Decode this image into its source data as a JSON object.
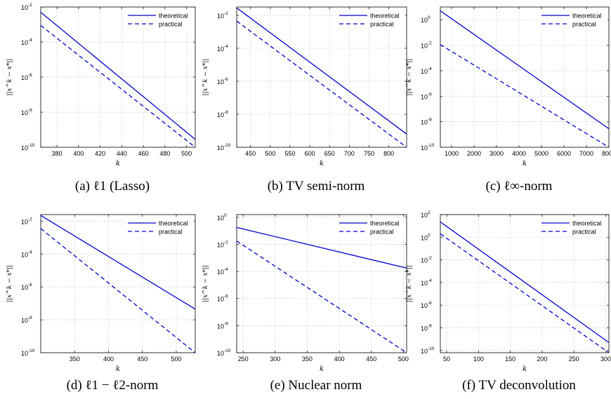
{
  "chart_data": [
    {
      "type": "line",
      "caption": "(a) ℓ1 (Lasso)",
      "xlabel": "k",
      "ylabel": "||x^k − x*||",
      "yscale": "log",
      "xlim": [
        365,
        508
      ],
      "ylim_exp": [
        -10,
        -2
      ],
      "xticks": [
        380,
        400,
        420,
        440,
        460,
        480,
        500
      ],
      "yticks_exp": [
        -10,
        -8,
        -6,
        -4,
        -2
      ],
      "grid": true,
      "legend": "top-right",
      "series": [
        {
          "name": "theoretical",
          "style": "solid",
          "x": [
            365,
            508
          ],
          "y": [
            "1e-2.3",
            "1e-9.55"
          ]
        },
        {
          "name": "practical",
          "style": "dashed",
          "x": [
            365,
            508
          ],
          "y": [
            "1e-3.05",
            "1e-10"
          ]
        }
      ]
    },
    {
      "type": "line",
      "caption": "(b) TV semi-norm",
      "xlabel": "k",
      "ylabel": "||x^k − x*||",
      "yscale": "log",
      "xlim": [
        415,
        845
      ],
      "ylim_exp": [
        -10,
        -1.5
      ],
      "xticks": [
        450,
        500,
        550,
        600,
        650,
        700,
        750,
        800
      ],
      "yticks_exp": [
        -10,
        -8,
        -6,
        -4,
        -2
      ],
      "grid": true,
      "legend": "top-right",
      "series": [
        {
          "name": "theoretical",
          "style": "solid",
          "x": [
            415,
            845
          ],
          "y": [
            "1e-1.55",
            "1e-9.2"
          ]
        },
        {
          "name": "practical",
          "style": "dashed",
          "x": [
            415,
            845
          ],
          "y": [
            "1e-2.35",
            "1e-10"
          ]
        }
      ]
    },
    {
      "type": "line",
      "caption": "(c) ℓ∞-norm",
      "xlabel": "k",
      "ylabel": "||x^k − x*||",
      "yscale": "log",
      "xlim": [
        500,
        8000
      ],
      "ylim_exp": [
        -10,
        1
      ],
      "xticks": [
        1000,
        2000,
        3000,
        4000,
        5000,
        6000,
        7000,
        8000
      ],
      "yticks_exp": [
        -10,
        -8,
        -6,
        -4,
        -2,
        0
      ],
      "grid": true,
      "legend": "top-right",
      "series": [
        {
          "name": "theoretical",
          "style": "solid",
          "x": [
            500,
            8000
          ],
          "y": [
            "1e0.7",
            "1e-8.55"
          ]
        },
        {
          "name": "practical",
          "style": "dashed",
          "x": [
            500,
            8000
          ],
          "y": [
            "1e-1.95",
            "1e-10"
          ]
        }
      ]
    },
    {
      "type": "line",
      "caption": "(d) ℓ1 − ℓ2-norm",
      "xlabel": "k",
      "ylabel": "||x^k − x*||",
      "yscale": "log",
      "xlim": [
        300,
        528
      ],
      "ylim_exp": [
        -10,
        -1.6
      ],
      "xticks": [
        350,
        400,
        450,
        500
      ],
      "yticks_exp": [
        -10,
        -8,
        -6,
        -4,
        -2
      ],
      "grid": true,
      "legend": "top-right",
      "series": [
        {
          "name": "theoretical",
          "style": "solid",
          "x": [
            300,
            528
          ],
          "y": [
            "1e-1.65",
            "1e-7.35"
          ]
        },
        {
          "name": "practical",
          "style": "dashed",
          "x": [
            300,
            528
          ],
          "y": [
            "1e-2.45",
            "1e-10"
          ]
        }
      ]
    },
    {
      "type": "line",
      "caption": "(e) Nuclear norm",
      "xlabel": "k",
      "ylabel": "||x^k − x*||",
      "yscale": "log",
      "xlim": [
        240,
        505
      ],
      "ylim_exp": [
        -10,
        0.2
      ],
      "xticks": [
        250,
        300,
        350,
        400,
        450,
        500
      ],
      "yticks_exp": [
        -10,
        -8,
        -6,
        -4,
        -2,
        0
      ],
      "grid": true,
      "legend": "top-right",
      "series": [
        {
          "name": "theoretical",
          "style": "solid",
          "x": [
            240,
            505
          ],
          "y": [
            "1e-0.75",
            "1e-3.75"
          ]
        },
        {
          "name": "practical",
          "style": "dashed",
          "x": [
            240,
            505
          ],
          "y": [
            "1e-1.75",
            "1e-10"
          ]
        }
      ]
    },
    {
      "type": "line",
      "caption": "(f) TV deconvolution",
      "xlabel": "k",
      "ylabel": "||x^k − x*||",
      "yscale": "log",
      "xlim": [
        40,
        305
      ],
      "ylim_exp": [
        -10.2,
        2
      ],
      "xticks": [
        50,
        100,
        150,
        200,
        250,
        300
      ],
      "yticks_exp": [
        -10,
        -8,
        -6,
        -4,
        -2,
        0,
        2
      ],
      "grid": true,
      "legend": "top-right",
      "series": [
        {
          "name": "theoretical",
          "style": "solid",
          "x": [
            40,
            305
          ],
          "y": [
            "1e1.35",
            "1e-9.3"
          ]
        },
        {
          "name": "practical",
          "style": "dashed",
          "x": [
            40,
            305
          ],
          "y": [
            "1e0.3",
            "1e-10.2"
          ]
        }
      ]
    }
  ]
}
